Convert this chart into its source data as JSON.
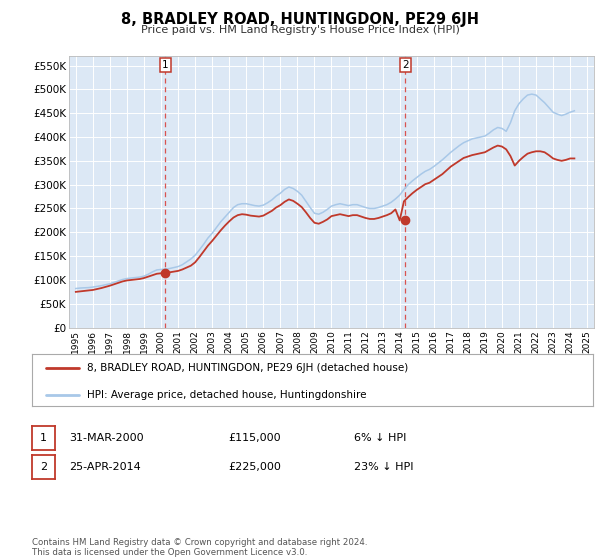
{
  "title": "8, BRADLEY ROAD, HUNTINGDON, PE29 6JH",
  "subtitle": "Price paid vs. HM Land Registry's House Price Index (HPI)",
  "bg_color": "#ffffff",
  "plot_bg_color": "#dce8f5",
  "grid_color": "#ffffff",
  "hpi_color": "#a8c8e8",
  "price_color": "#c0392b",
  "vline_color": "#d9534f",
  "ylim": [
    0,
    570000
  ],
  "yticks": [
    0,
    50000,
    100000,
    150000,
    200000,
    250000,
    300000,
    350000,
    400000,
    450000,
    500000,
    550000
  ],
  "ytick_labels": [
    "£0",
    "£50K",
    "£100K",
    "£150K",
    "£200K",
    "£250K",
    "£300K",
    "£350K",
    "£400K",
    "£450K",
    "£500K",
    "£550K"
  ],
  "sale1_year": 2000.247,
  "sale1_price": 115000,
  "sale1_label": "1",
  "sale2_year": 2014.319,
  "sale2_price": 225000,
  "sale2_label": "2",
  "legend_entries": [
    {
      "label": "8, BRADLEY ROAD, HUNTINGDON, PE29 6JH (detached house)",
      "color": "#c0392b"
    },
    {
      "label": "HPI: Average price, detached house, Huntingdonshire",
      "color": "#a8c8e8"
    }
  ],
  "annotation1": {
    "num": "1",
    "date": "31-MAR-2000",
    "price": "£115,000",
    "pct": "6% ↓ HPI"
  },
  "annotation2": {
    "num": "2",
    "date": "25-APR-2014",
    "price": "£225,000",
    "pct": "23% ↓ HPI"
  },
  "footnote": "Contains HM Land Registry data © Crown copyright and database right 2024.\nThis data is licensed under the Open Government Licence v3.0.",
  "hpi_data": {
    "years": [
      1995.0,
      1995.25,
      1995.5,
      1995.75,
      1996.0,
      1996.25,
      1996.5,
      1996.75,
      1997.0,
      1997.25,
      1997.5,
      1997.75,
      1998.0,
      1998.25,
      1998.5,
      1998.75,
      1999.0,
      1999.25,
      1999.5,
      1999.75,
      2000.0,
      2000.25,
      2000.5,
      2000.75,
      2001.0,
      2001.25,
      2001.5,
      2001.75,
      2002.0,
      2002.25,
      2002.5,
      2002.75,
      2003.0,
      2003.25,
      2003.5,
      2003.75,
      2004.0,
      2004.25,
      2004.5,
      2004.75,
      2005.0,
      2005.25,
      2005.5,
      2005.75,
      2006.0,
      2006.25,
      2006.5,
      2006.75,
      2007.0,
      2007.25,
      2007.5,
      2007.75,
      2008.0,
      2008.25,
      2008.5,
      2008.75,
      2009.0,
      2009.25,
      2009.5,
      2009.75,
      2010.0,
      2010.25,
      2010.5,
      2010.75,
      2011.0,
      2011.25,
      2011.5,
      2011.75,
      2012.0,
      2012.25,
      2012.5,
      2012.75,
      2013.0,
      2013.25,
      2013.5,
      2013.75,
      2014.0,
      2014.25,
      2014.5,
      2014.75,
      2015.0,
      2015.25,
      2015.5,
      2015.75,
      2016.0,
      2016.25,
      2016.5,
      2016.75,
      2017.0,
      2017.25,
      2017.5,
      2017.75,
      2018.0,
      2018.25,
      2018.5,
      2018.75,
      2019.0,
      2019.25,
      2019.5,
      2019.75,
      2020.0,
      2020.25,
      2020.5,
      2020.75,
      2021.0,
      2021.25,
      2021.5,
      2021.75,
      2022.0,
      2022.25,
      2022.5,
      2022.75,
      2023.0,
      2023.25,
      2023.5,
      2023.75,
      2024.0,
      2024.25
    ],
    "values": [
      82000,
      83000,
      83500,
      84000,
      85000,
      86500,
      88000,
      90000,
      92000,
      95000,
      98000,
      101000,
      103000,
      104000,
      105000,
      106000,
      108000,
      112000,
      117000,
      121000,
      122000,
      123000,
      124000,
      126000,
      128000,
      132000,
      138000,
      144000,
      152000,
      163000,
      175000,
      188000,
      198000,
      210000,
      222000,
      232000,
      242000,
      252000,
      258000,
      260000,
      260000,
      258000,
      256000,
      255000,
      257000,
      262000,
      268000,
      276000,
      282000,
      290000,
      295000,
      292000,
      286000,
      278000,
      265000,
      252000,
      240000,
      238000,
      242000,
      248000,
      255000,
      258000,
      260000,
      258000,
      256000,
      258000,
      258000,
      255000,
      252000,
      250000,
      250000,
      252000,
      255000,
      258000,
      263000,
      270000,
      278000,
      290000,
      300000,
      308000,
      315000,
      322000,
      328000,
      332000,
      338000,
      345000,
      352000,
      360000,
      368000,
      375000,
      382000,
      388000,
      392000,
      396000,
      398000,
      400000,
      402000,
      408000,
      415000,
      420000,
      418000,
      412000,
      430000,
      455000,
      470000,
      480000,
      488000,
      490000,
      488000,
      480000,
      472000,
      462000,
      452000,
      448000,
      445000,
      448000,
      452000,
      455000
    ]
  },
  "price_data": {
    "years": [
      1995.0,
      1995.25,
      1995.5,
      1995.75,
      1996.0,
      1996.25,
      1996.5,
      1996.75,
      1997.0,
      1997.25,
      1997.5,
      1997.75,
      1998.0,
      1998.25,
      1998.5,
      1998.75,
      1999.0,
      1999.25,
      1999.5,
      1999.75,
      2000.0,
      2000.25,
      2000.5,
      2000.75,
      2001.0,
      2001.25,
      2001.5,
      2001.75,
      2002.0,
      2002.25,
      2002.5,
      2002.75,
      2003.0,
      2003.25,
      2003.5,
      2003.75,
      2004.0,
      2004.25,
      2004.5,
      2004.75,
      2005.0,
      2005.25,
      2005.5,
      2005.75,
      2006.0,
      2006.25,
      2006.5,
      2006.75,
      2007.0,
      2007.25,
      2007.5,
      2007.75,
      2008.0,
      2008.25,
      2008.5,
      2008.75,
      2009.0,
      2009.25,
      2009.5,
      2009.75,
      2010.0,
      2010.25,
      2010.5,
      2010.75,
      2011.0,
      2011.25,
      2011.5,
      2011.75,
      2012.0,
      2012.25,
      2012.5,
      2012.75,
      2013.0,
      2013.25,
      2013.5,
      2013.75,
      2014.0,
      2014.25,
      2014.5,
      2014.75,
      2015.0,
      2015.25,
      2015.5,
      2015.75,
      2016.0,
      2016.25,
      2016.5,
      2016.75,
      2017.0,
      2017.25,
      2017.5,
      2017.75,
      2018.0,
      2018.25,
      2018.5,
      2018.75,
      2019.0,
      2019.25,
      2019.5,
      2019.75,
      2020.0,
      2020.25,
      2020.5,
      2020.75,
      2021.0,
      2021.25,
      2021.5,
      2021.75,
      2022.0,
      2022.25,
      2022.5,
      2022.75,
      2023.0,
      2023.25,
      2023.5,
      2023.75,
      2024.0,
      2024.25
    ],
    "values": [
      75000,
      76000,
      77000,
      78000,
      79000,
      81000,
      83000,
      85500,
      88000,
      91000,
      94000,
      97000,
      99000,
      100000,
      101000,
      102000,
      104000,
      107000,
      110000,
      113000,
      114000,
      115000,
      116000,
      117500,
      119000,
      122000,
      126000,
      130000,
      137000,
      148000,
      160000,
      172000,
      182000,
      193000,
      204000,
      214000,
      223000,
      231000,
      236000,
      238000,
      237000,
      235000,
      234000,
      233000,
      235000,
      240000,
      245000,
      252000,
      257000,
      264000,
      269000,
      266000,
      260000,
      253000,
      242000,
      230000,
      220000,
      218000,
      222000,
      227000,
      234000,
      236000,
      238000,
      236000,
      234000,
      236000,
      236000,
      233000,
      230000,
      228000,
      228000,
      230000,
      233000,
      236000,
      240000,
      248000,
      225000,
      265000,
      274000,
      282000,
      289000,
      295000,
      301000,
      304000,
      310000,
      316000,
      322000,
      330000,
      338000,
      344000,
      350000,
      356000,
      359000,
      362000,
      364000,
      366000,
      368000,
      373000,
      378000,
      382000,
      380000,
      374000,
      360000,
      340000,
      350000,
      358000,
      365000,
      368000,
      370000,
      370000,
      368000,
      362000,
      355000,
      352000,
      350000,
      352000,
      355000,
      355000
    ]
  }
}
